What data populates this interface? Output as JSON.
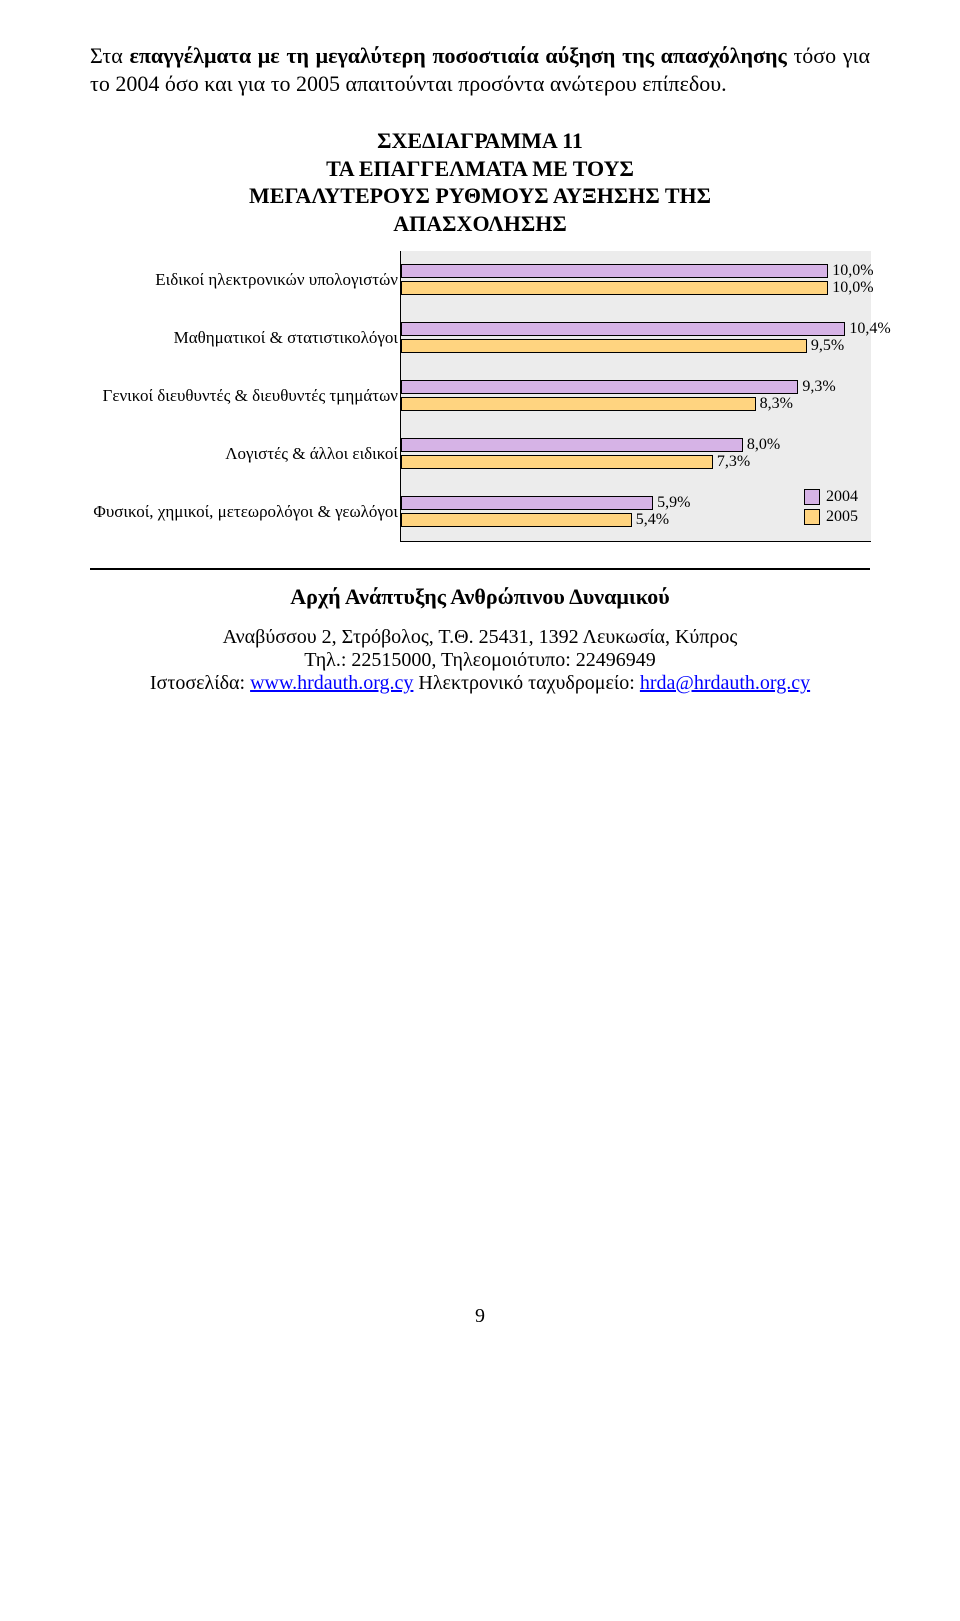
{
  "intro": {
    "plain_before": "Στα ",
    "bold": "επαγγέλματα με τη μεγαλύτερη ποσοστιαία αύξηση της απασχόλησης",
    "plain_after": " τόσο για το 2004 όσο και για το 2005 απαιτούνται προσόντα ανώτερου επίπεδου."
  },
  "chart": {
    "title_l1": "ΣΧΕΔΙΑΓΡΑΜΜΑ 11",
    "title_l2": "ΤΑ ΕΠΑΓΓΕΛΜΑΤΑ ΜΕ ΤΟΥΣ",
    "title_l3": "ΜΕΓΑΛΥΤΕΡΟΥΣ ΡΥΘΜΟΥΣ ΑΥΞΗΣΗΣ ΤΗΣ",
    "title_l4": "ΑΠΑΣΧΟΛΗΣΗΣ",
    "type": "bar-horizontal-grouped",
    "background_color": "#ececec",
    "axis_color": "#000000",
    "x_max": 11.0,
    "series": [
      {
        "name": "2004",
        "color": "#d6b3e6"
      },
      {
        "name": "2005",
        "color": "#ffd480"
      }
    ],
    "categories": [
      {
        "label": "Ειδικοί ηλεκτρονικών υπολογιστών",
        "v2004": 10.0,
        "v2005": 10.0,
        "l2004": "10,0%",
        "l2005": "10,0%"
      },
      {
        "label": "Μαθηματικοί & στατιστικολόγοι",
        "v2004": 10.4,
        "v2005": 9.5,
        "l2004": "10,4%",
        "l2005": "9,5%"
      },
      {
        "label": "Γενικοί διευθυντές & διευθυντές τμημάτων",
        "v2004": 9.3,
        "v2005": 8.3,
        "l2004": "9,3%",
        "l2005": "8,3%"
      },
      {
        "label": "Λογιστές & άλλοι ειδικοί",
        "v2004": 8.0,
        "v2005": 7.3,
        "l2004": "8,0%",
        "l2005": "7,3%"
      },
      {
        "label": "Φυσικοί, χημικοί, μετεωρολόγοι & γεωλόγοι",
        "v2004": 5.9,
        "v2005": 5.4,
        "l2004": "5,9%",
        "l2005": "5,4%"
      }
    ],
    "legend": {
      "items": [
        "2004",
        "2005"
      ]
    },
    "label_fontsize": 16,
    "category_fontsize": 17,
    "title_fontsize": 22
  },
  "footer": {
    "heading": "Αρχή Ανάπτυξης Ανθρώπινου Δυναμικού",
    "address": "Αναβύσσου 2, Στρόβολος, Τ.Θ. 25431, 1392 Λευκωσία, Κύπρος",
    "phone": "Τηλ.: 22515000, Τηλεομοιότυπο: 22496949",
    "web_label": "Ιστοσελίδα: ",
    "web_url": "www.hrdauth.org.cy",
    "email_label": "    Ηλεκτρονικό ταχυδρομείο: ",
    "email_addr": "hrda@hrdauth.org.cy"
  },
  "page_number": "9"
}
